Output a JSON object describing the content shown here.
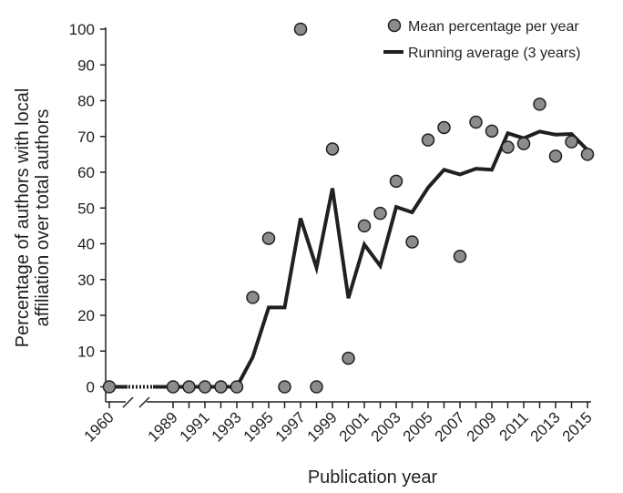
{
  "chart_data": {
    "type": "scatter",
    "xlabel": "Publication year",
    "ylabel_lines": [
      "Percentage of authors with local",
      "affiliation over total authors"
    ],
    "ylim": [
      0,
      100
    ],
    "yticks": [
      "0",
      "10",
      "20",
      "30",
      "40",
      "50",
      "60",
      "70",
      "80",
      "90",
      "100"
    ],
    "xticks": [
      "1960",
      "1989",
      "1991",
      "1993",
      "1995",
      "1997",
      "1999",
      "2001",
      "2003",
      "2005",
      "2007",
      "2009",
      "2011",
      "2013",
      "2015"
    ],
    "axis_break": "between 1960 and 1989",
    "legend": {
      "placement": "top-right",
      "marker_label": "Mean percentage per year",
      "line_label": "Running average (3 years)"
    },
    "series": [
      {
        "name": "Mean percentage per year",
        "kind": "markers",
        "color": "#8c8c8c",
        "edge": "#231f20",
        "points": [
          {
            "x": "1960",
            "y": 0
          },
          {
            "x": "1989",
            "y": 0
          },
          {
            "x": "1990",
            "y": 0
          },
          {
            "x": "1991",
            "y": 0
          },
          {
            "x": "1992",
            "y": 0
          },
          {
            "x": "1993",
            "y": 0
          },
          {
            "x": "1994",
            "y": 25
          },
          {
            "x": "1995",
            "y": 41.5
          },
          {
            "x": "1996",
            "y": 0
          },
          {
            "x": "1997",
            "y": 100
          },
          {
            "x": "1998",
            "y": 0
          },
          {
            "x": "1999",
            "y": 66.5
          },
          {
            "x": "2000",
            "y": 8
          },
          {
            "x": "2001",
            "y": 45
          },
          {
            "x": "2002",
            "y": 48.5
          },
          {
            "x": "2003",
            "y": 57.5
          },
          {
            "x": "2004",
            "y": 40.5
          },
          {
            "x": "2005",
            "y": 69
          },
          {
            "x": "2006",
            "y": 72.5
          },
          {
            "x": "2007",
            "y": 36.5
          },
          {
            "x": "2008",
            "y": 74
          },
          {
            "x": "2009",
            "y": 71.5
          },
          {
            "x": "2010",
            "y": 67
          },
          {
            "x": "2011",
            "y": 68
          },
          {
            "x": "2012",
            "y": 79
          },
          {
            "x": "2013",
            "y": 64.5
          },
          {
            "x": "2014",
            "y": 68.5
          },
          {
            "x": "2015",
            "y": 65
          }
        ]
      },
      {
        "name": "Running average (3 years)",
        "kind": "line",
        "color": "#231f20",
        "points": [
          {
            "x": "1960",
            "y": 0
          },
          {
            "x": "1989",
            "y": 0
          },
          {
            "x": "1990",
            "y": 0
          },
          {
            "x": "1991",
            "y": 0
          },
          {
            "x": "1992",
            "y": 0
          },
          {
            "x": "1993",
            "y": 0
          },
          {
            "x": "1994",
            "y": 8.3
          },
          {
            "x": "1995",
            "y": 22.2
          },
          {
            "x": "1996",
            "y": 22.2
          },
          {
            "x": "1997",
            "y": 47.1
          },
          {
            "x": "1998",
            "y": 33.3
          },
          {
            "x": "1999",
            "y": 55.5
          },
          {
            "x": "2000",
            "y": 24.8
          },
          {
            "x": "2001",
            "y": 39.8
          },
          {
            "x": "2002",
            "y": 33.8
          },
          {
            "x": "2003",
            "y": 50.3
          },
          {
            "x": "2004",
            "y": 48.8
          },
          {
            "x": "2005",
            "y": 55.7
          },
          {
            "x": "2006",
            "y": 60.7
          },
          {
            "x": "2007",
            "y": 59.4
          },
          {
            "x": "2008",
            "y": 61
          },
          {
            "x": "2009",
            "y": 60.7
          },
          {
            "x": "2010",
            "y": 70.9
          },
          {
            "x": "2011",
            "y": 69.5
          },
          {
            "x": "2012",
            "y": 71.4
          },
          {
            "x": "2013",
            "y": 70.5
          },
          {
            "x": "2014",
            "y": 70.7
          },
          {
            "x": "2015",
            "y": 66.2
          }
        ]
      }
    ]
  }
}
